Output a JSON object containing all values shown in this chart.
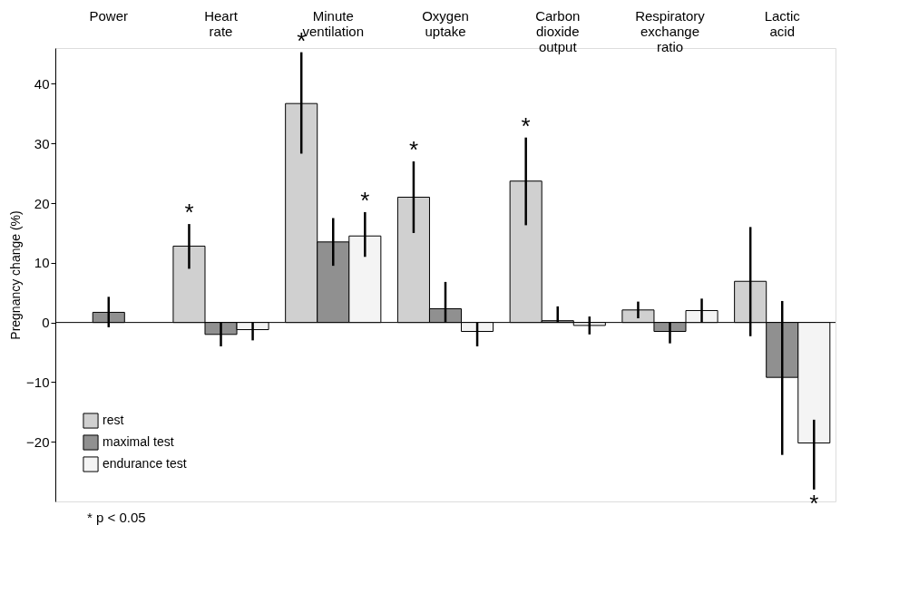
{
  "chart_data": {
    "type": "bar",
    "ylabel": "Pregnancy change (%)",
    "categories": [
      "Power",
      "Heart rate",
      "Minute ventilation",
      "Oxygen uptake",
      "Carbon dioxide output",
      "Respiratory exchange ratio",
      "Lactic acid"
    ],
    "series": [
      {
        "name": "rest",
        "color": "#d0d0d0",
        "values": [
          null,
          12.8,
          36.7,
          21.0,
          23.7,
          2.1,
          6.9
        ],
        "errors": [
          null,
          [
            9.0,
            16.5
          ],
          [
            28.3,
            45.3
          ],
          [
            15.0,
            27.0
          ],
          [
            16.3,
            31.0
          ],
          [
            0.7,
            3.5
          ],
          [
            -2.3,
            16.0
          ]
        ],
        "value_labels": [
          null,
          "*",
          "*",
          "*",
          "*",
          null,
          null
        ]
      },
      {
        "name": "maximal test",
        "color": "#909090",
        "values": [
          1.7,
          -2.0,
          13.5,
          2.3,
          0.3,
          -1.5,
          -9.2
        ],
        "errors": [
          [
            -0.8,
            4.3
          ],
          [
            -4.0,
            0
          ],
          [
            9.5,
            17.5
          ],
          [
            0,
            6.8
          ],
          [
            0,
            2.7
          ],
          [
            -3.5,
            0
          ],
          [
            -22.2,
            3.6
          ]
        ]
      },
      {
        "name": "endurance test",
        "color": "#f4f4f4",
        "values": [
          null,
          -1.2,
          14.5,
          -1.5,
          -0.5,
          2.0,
          -20.2
        ],
        "errors": [
          null,
          [
            -3.0,
            0
          ],
          [
            11.0,
            18.5
          ],
          [
            -4.0,
            0
          ],
          [
            -2.0,
            1.0
          ],
          [
            0,
            4.0
          ],
          [
            -28.0,
            -16.3
          ]
        ],
        "value_labels": [
          null,
          null,
          "*",
          null,
          null,
          null,
          "*"
        ]
      }
    ],
    "ylim": [
      -30,
      46
    ],
    "yticks": [
      -20,
      -10,
      0,
      10,
      20,
      30,
      40
    ],
    "grid": false,
    "legend": "bottom left",
    "ref_lines": [
      {
        "axis": "y",
        "value": 0
      }
    ],
    "annotations": [
      "* p < 0.05"
    ]
  }
}
